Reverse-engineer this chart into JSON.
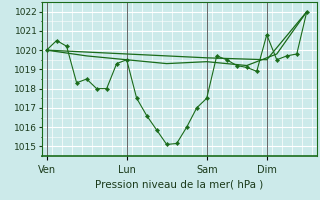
{
  "xlabel": "Pression niveau de la mer( hPa )",
  "ylim": [
    1014.5,
    1022.5
  ],
  "yticks": [
    1015,
    1016,
    1017,
    1018,
    1019,
    1020,
    1021,
    1022
  ],
  "bg_color": "#cceaea",
  "grid_color": "#ffffff",
  "line_color": "#1a6b1a",
  "vline_color": "#666666",
  "day_labels": [
    "Ven",
    "Lun",
    "Sam",
    "Dim"
  ],
  "day_positions": [
    0,
    8,
    16,
    22
  ],
  "xlim": [
    -0.5,
    27
  ],
  "detailed_x": [
    0,
    1,
    2,
    3,
    4,
    5,
    6,
    7,
    8,
    9,
    10,
    11,
    12,
    13,
    14,
    15,
    16,
    17,
    18,
    19,
    20,
    21,
    22,
    23,
    24,
    25,
    26
  ],
  "detailed_y": [
    1020.0,
    1020.5,
    1020.2,
    1018.3,
    1018.5,
    1018.0,
    1018.0,
    1019.3,
    1019.5,
    1017.5,
    1016.6,
    1015.85,
    1015.1,
    1015.15,
    1016.0,
    1017.0,
    1017.5,
    1019.7,
    1019.5,
    1019.2,
    1019.1,
    1018.9,
    1020.8,
    1019.5,
    1019.7,
    1019.8,
    1022.0
  ],
  "smooth_x": [
    0,
    4,
    8,
    12,
    16,
    20,
    23,
    26
  ],
  "smooth_y": [
    1020.0,
    1019.7,
    1019.5,
    1019.3,
    1019.4,
    1019.2,
    1019.8,
    1022.0
  ],
  "trend_x": [
    0,
    8,
    16,
    22,
    26
  ],
  "trend_y": [
    1020.0,
    1019.8,
    1019.6,
    1019.5,
    1022.0
  ]
}
